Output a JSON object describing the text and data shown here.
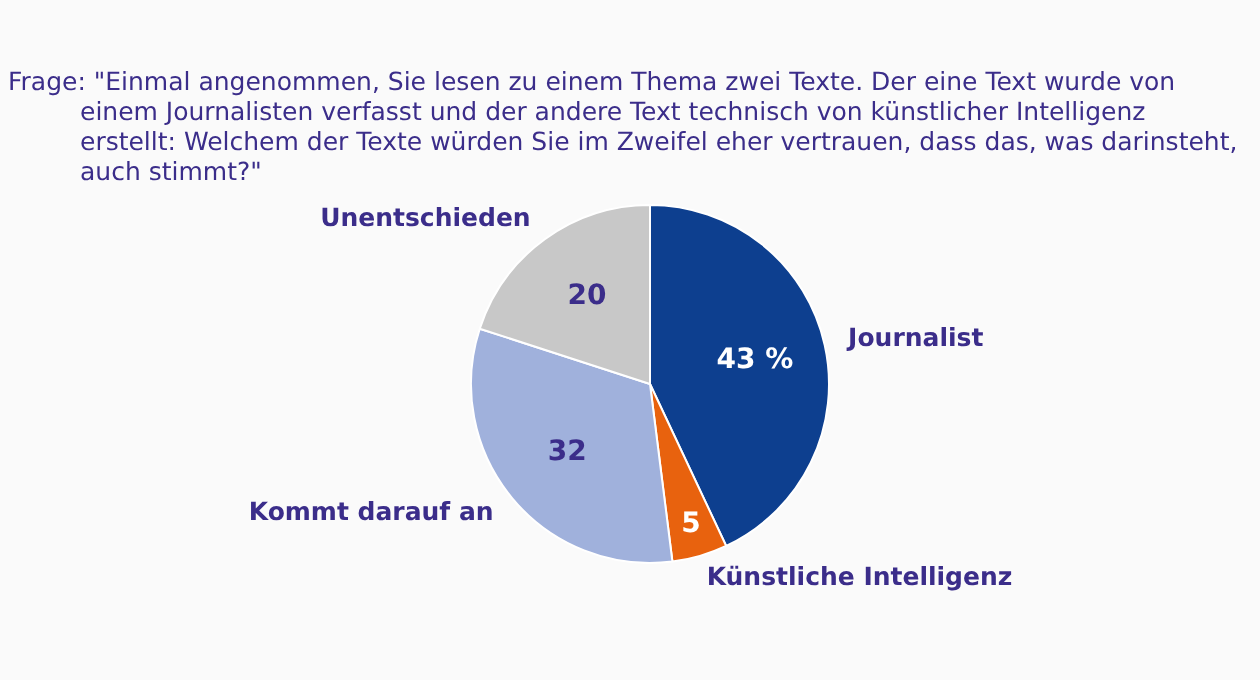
{
  "chart_data": {
    "type": "pie",
    "title": "Frage:  \"Einmal angenommen, Sie lesen zu einem Thema zwei Texte. Der eine Text wurde von einem Journalisten verfasst und der andere Text technisch von künstlicher Intelligenz erstellt: Welchem der Texte würden Sie im Zweifel eher vertrauen, dass das, was darinsteht, auch stimmt?\"",
    "categories": [
      "Journalist",
      "Künstliche Intelligenz",
      "Kommt darauf an",
      "Unentschieden"
    ],
    "values": [
      43,
      5,
      32,
      20
    ],
    "value_labels": [
      "43 %",
      "5",
      "32",
      "20"
    ],
    "colors": [
      "#0d3f8f",
      "#e8620e",
      "#a0b1dc",
      "#c8c8c8"
    ],
    "legend": false
  }
}
